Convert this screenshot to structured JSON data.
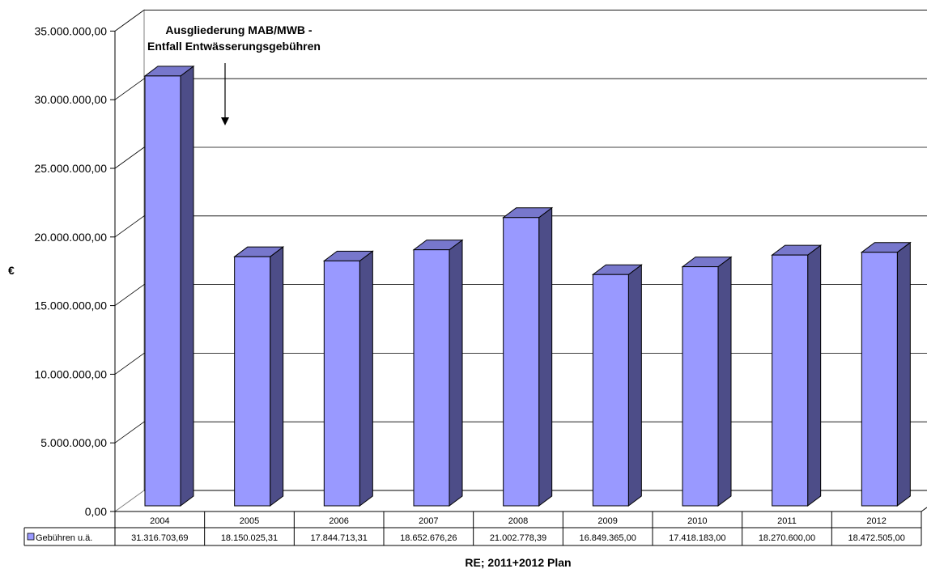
{
  "chart_data": {
    "type": "bar",
    "categories": [
      "2004",
      "2005",
      "2006",
      "2007",
      "2008",
      "2009",
      "2010",
      "2011",
      "2012"
    ],
    "series": [
      {
        "name": "Gebühren u.ä.",
        "values": [
          31316703.69,
          18150025.31,
          17844713.31,
          18652676.26,
          21002778.39,
          16849365.0,
          17418183.0,
          18270600.0,
          18472505.0
        ],
        "value_labels": [
          "31.316.703,69",
          "18.150.025,31",
          "17.844.713,31",
          "18.652.676,26",
          "21.002.778,39",
          "16.849.365,00",
          "17.418.183,00",
          "18.270.600,00",
          "18.472.505,00"
        ],
        "color": "#9999ff",
        "side_color": "#4d4d88",
        "top_color": "#7777cc"
      }
    ],
    "ylim": [
      0,
      35000000
    ],
    "ytick_labels": [
      "0,00",
      "5.000.000,00",
      "10.000.000,00",
      "15.000.000,00",
      "20.000.000,00",
      "25.000.000,00",
      "30.000.000,00",
      "35.000.000,00"
    ],
    "ylabel": "€",
    "xlabel": "RE; 2011+2012 Plan",
    "annotation": {
      "line1": "Ausgliederung MAB/MWB -",
      "line2": "Entfall Entwässerungsgebühren"
    },
    "grid": true,
    "legend": "data-table"
  }
}
